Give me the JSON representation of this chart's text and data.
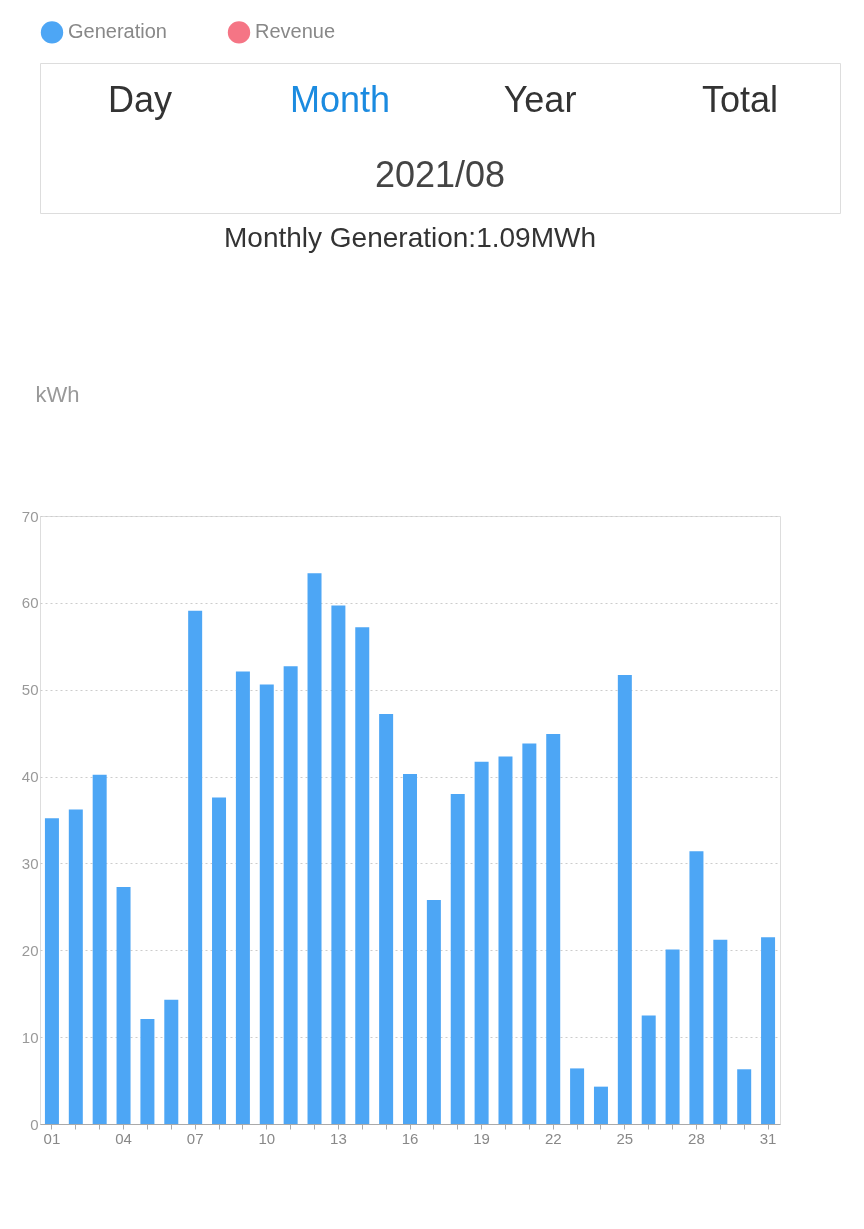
{
  "chart_data": {
    "type": "bar",
    "title": "Monthly Generation:1.09MWh",
    "ylabel": "kWh",
    "annotations": [
      "Day",
      "Month",
      "Year",
      "Total",
      "2021/08"
    ],
    "categories": [
      "01",
      null,
      null,
      "04",
      null,
      null,
      "07",
      null,
      null,
      "10",
      null,
      null,
      "13",
      null,
      null,
      "16",
      null,
      null,
      "19",
      null,
      null,
      "22",
      null,
      null,
      "25",
      null,
      null,
      "28",
      null,
      null,
      "31"
    ],
    "series": [
      {
        "name": "Generation",
        "color": "#4da6f5",
        "values": [
          35.2,
          36.2,
          40.2,
          27.3,
          12.1,
          14.3,
          59.1,
          37.6,
          52.1,
          50.6,
          52.7,
          63.4,
          59.7,
          57.2,
          47.2,
          40.3,
          25.8,
          38.0,
          41.7,
          42.3,
          43.8,
          44.9,
          6.4,
          4.3,
          51.7,
          12.5,
          20.1,
          31.4,
          21.2,
          6.3,
          21.5
        ]
      },
      {
        "name": "Revenue",
        "color": "#f57585",
        "values": [
          null,
          null,
          null,
          null,
          null,
          null,
          null,
          null,
          null,
          null,
          null,
          null,
          null,
          null,
          null,
          null,
          null,
          null,
          null,
          null,
          null,
          null,
          null,
          null,
          null,
          null,
          null,
          null,
          null,
          null,
          null
        ]
      }
    ],
    "ylim": [
      0,
      70
    ],
    "yticks": [
      0,
      10,
      20,
      30,
      40,
      50,
      60,
      70
    ],
    "grid": "y",
    "legend": "top"
  }
}
